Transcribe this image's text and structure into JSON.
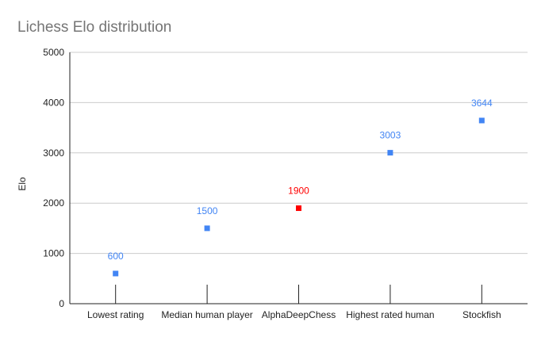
{
  "chart_data": {
    "type": "scatter",
    "title": "Lichess Elo distribution",
    "xlabel": "",
    "ylabel": "Elo",
    "ylim": [
      0,
      5000
    ],
    "yticks": [
      0,
      1000,
      2000,
      3000,
      4000,
      5000
    ],
    "grid": true,
    "legend": "none",
    "marker": "square",
    "categories": [
      "Lowest rating",
      "Median human player",
      "AlphaDeepChess",
      "Highest rated human",
      "Stockfish"
    ],
    "values": [
      600,
      1500,
      1900,
      3003,
      3644
    ],
    "point_labels": [
      "600",
      "1500",
      "1900",
      "3003",
      "3644"
    ],
    "point_colors": [
      "#4285f4",
      "#4285f4",
      "#ff0000",
      "#4285f4",
      "#4285f4"
    ]
  }
}
